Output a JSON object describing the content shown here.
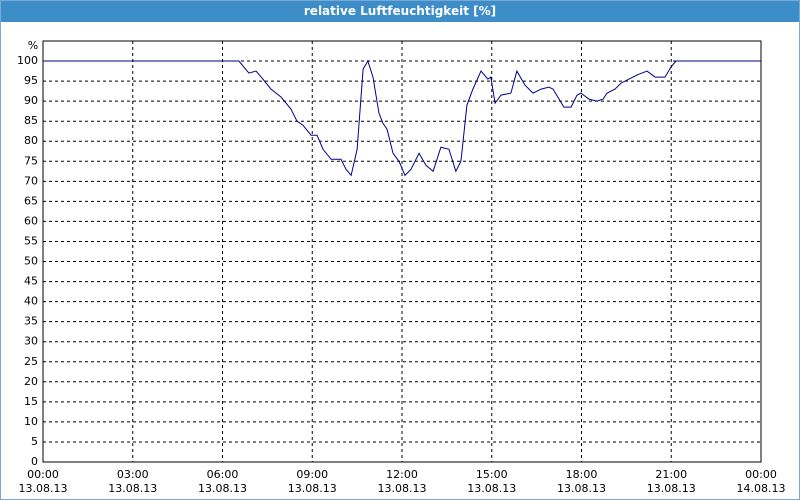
{
  "chart_data": {
    "type": "line",
    "title": "relative Luftfeuchtigkeit [%]",
    "y_label": "%",
    "x": [
      0,
      6.55,
      6.88,
      7.12,
      7.35,
      7.62,
      7.96,
      8.29,
      8.49,
      8.69,
      8.96,
      9.16,
      9.36,
      9.63,
      9.96,
      10.13,
      10.3,
      10.5,
      10.7,
      10.86,
      11.03,
      11.23,
      11.36,
      11.5,
      11.7,
      11.9,
      12.1,
      12.3,
      12.57,
      12.8,
      13.04,
      13.3,
      13.57,
      13.8,
      13.97,
      14.17,
      14.37,
      14.64,
      14.87,
      14.97,
      15.11,
      15.31,
      15.64,
      15.84,
      16.11,
      16.38,
      16.65,
      16.91,
      17.05,
      17.21,
      17.41,
      17.65,
      17.85,
      17.98,
      18.25,
      18.52,
      18.72,
      18.85,
      19.12,
      19.32,
      19.59,
      19.85,
      20.19,
      20.46,
      20.79,
      20.99,
      21.16,
      24
    ],
    "series": [
      {
        "color": "#00008b",
        "values": [
          100,
          100,
          97,
          97.5,
          95.5,
          93,
          91,
          88,
          85,
          84,
          81.5,
          81.5,
          78,
          75.5,
          75.5,
          73,
          71.5,
          78,
          98,
          100,
          96,
          87,
          84.5,
          83,
          77,
          75,
          71.5,
          73,
          77,
          74,
          72.5,
          78.5,
          78,
          72.5,
          75,
          89,
          93,
          97.5,
          95.5,
          96,
          89.5,
          91.5,
          92,
          97.5,
          94,
          92,
          93,
          93.5,
          93,
          91,
          88.5,
          88.5,
          91.5,
          92,
          90.5,
          90,
          90.5,
          92,
          93,
          94.5,
          95.5,
          96.5,
          97.5,
          96,
          96,
          98.5,
          100,
          100
        ]
      }
    ],
    "xlim": [
      0,
      24
    ],
    "xticks": [
      {
        "value": 0,
        "label": "00:00\n13.08.13"
      },
      {
        "value": 3,
        "label": "03:00\n13.08.13"
      },
      {
        "value": 6,
        "label": "06:00\n13.08.13"
      },
      {
        "value": 9,
        "label": "09:00\n13.08.13"
      },
      {
        "value": 12,
        "label": "12:00\n13.08.13"
      },
      {
        "value": 15,
        "label": "15:00\n13.08.13"
      },
      {
        "value": 18,
        "label": "18:00\n13.08.13"
      },
      {
        "value": 21,
        "label": "21:00\n13.08.13"
      },
      {
        "value": 24,
        "label": "00:00\n14.08.13"
      }
    ],
    "ylim": [
      0,
      105
    ],
    "yticks": [
      0,
      5,
      10,
      15,
      20,
      25,
      30,
      35,
      40,
      45,
      50,
      55,
      60,
      65,
      70,
      75,
      80,
      85,
      90,
      95,
      100
    ],
    "grid": true
  }
}
